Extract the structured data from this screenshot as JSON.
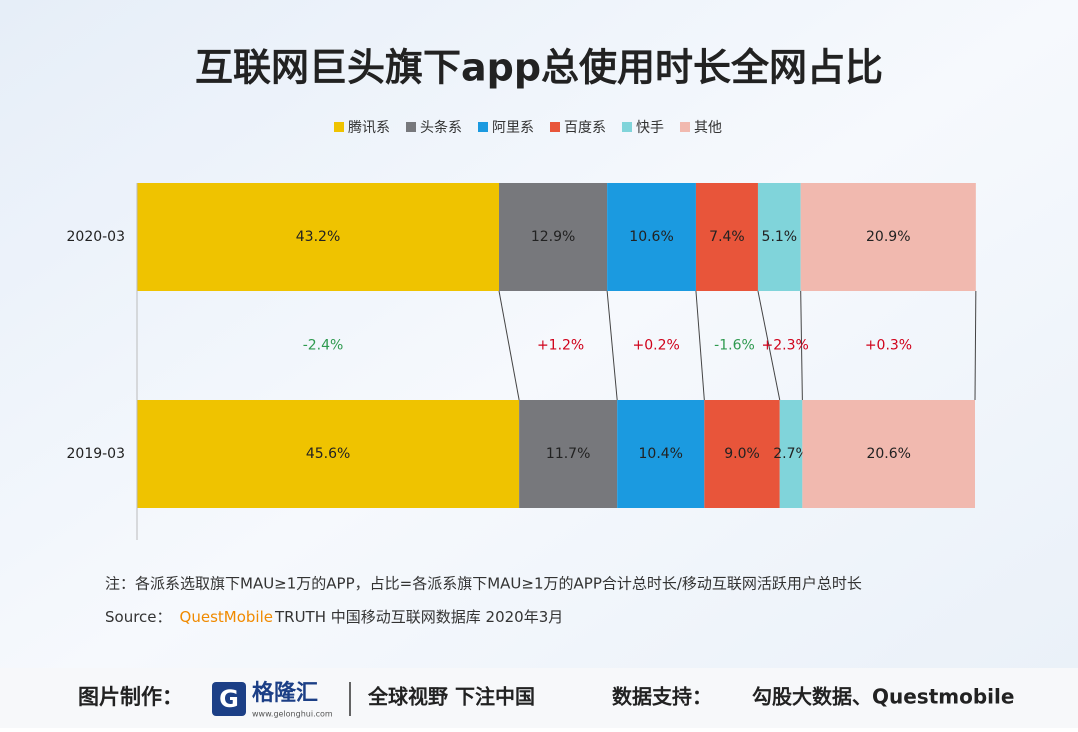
{
  "chart_data": {
    "type": "stacked-bar-horizontal",
    "title": "互联网巨头旗下app总使用时长全网占比",
    "categories": [
      "2020-03",
      "2019-03"
    ],
    "xlim": [
      0,
      100
    ],
    "series": [
      {
        "name": "腾讯系",
        "color": "#efc300",
        "values": [
          43.2,
          45.6
        ],
        "value_labels": [
          "43.2%",
          "45.6%"
        ]
      },
      {
        "name": "头条系",
        "color": "#77787c",
        "values": [
          12.9,
          11.7
        ],
        "value_labels": [
          "12.9%",
          "11.7%"
        ]
      },
      {
        "name": "阿里系",
        "color": "#1b9ae0",
        "values": [
          10.6,
          10.4
        ],
        "value_labels": [
          "10.6%",
          "10.4%"
        ]
      },
      {
        "name": "百度系",
        "color": "#e8553a",
        "values": [
          7.4,
          9.0
        ],
        "value_labels": [
          "7.4%",
          "9.0%"
        ]
      },
      {
        "name": "快手",
        "color": "#80d4da",
        "values": [
          5.1,
          2.7
        ],
        "value_labels": [
          "5.1%",
          "2.7%"
        ]
      },
      {
        "name": "其他",
        "color": "#f1b9af",
        "values": [
          20.9,
          20.6
        ],
        "value_labels": [
          "20.9%",
          "20.6%"
        ]
      }
    ],
    "changes": {
      "values": [
        -2.4,
        1.2,
        0.2,
        -1.6,
        2.3,
        0.3
      ],
      "labels": [
        "-2.4%",
        "+1.2%",
        "+0.2%",
        "-1.6%",
        "+2.3%",
        "+0.3%"
      ]
    },
    "note": "注：各派系选取旗下MAU≥1万的APP，占比=各派系旗下MAU≥1万的APP合计总时长/移动互联网活跃用户总时长",
    "source": {
      "label": "Source：",
      "brand": "QuestMobile",
      "text": "TRUTH 中国移动互联网数据库 2020年3月"
    }
  },
  "footer": {
    "made_by": "图片制作：",
    "logo": "格隆汇",
    "url": "www.gelonghui.com",
    "slogan": "全球视野 下注中国",
    "support": "数据支持：",
    "support_names": "勾股大数据、Questmobile"
  }
}
